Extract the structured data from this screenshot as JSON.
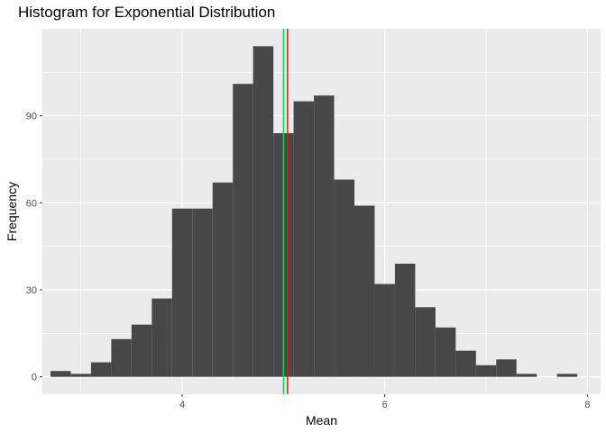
{
  "chart_data": {
    "type": "bar",
    "title": "Histogram for Exponential Distribution",
    "xlabel": "Mean",
    "ylabel": "Frequency",
    "xlim": [
      2.62,
      8.13
    ],
    "ylim": [
      -6,
      120
    ],
    "xticks": [
      4,
      6,
      8
    ],
    "yticks": [
      0,
      30,
      60,
      90
    ],
    "bin_width": 0.2,
    "bins": [
      {
        "start": 2.7,
        "count": 2
      },
      {
        "start": 2.9,
        "count": 1
      },
      {
        "start": 3.1,
        "count": 5
      },
      {
        "start": 3.3,
        "count": 13
      },
      {
        "start": 3.5,
        "count": 18
      },
      {
        "start": 3.7,
        "count": 27
      },
      {
        "start": 3.9,
        "count": 58
      },
      {
        "start": 4.1,
        "count": 58
      },
      {
        "start": 4.3,
        "count": 67
      },
      {
        "start": 4.5,
        "count": 101
      },
      {
        "start": 4.7,
        "count": 114
      },
      {
        "start": 4.9,
        "count": 84
      },
      {
        "start": 5.1,
        "count": 95
      },
      {
        "start": 5.3,
        "count": 97
      },
      {
        "start": 5.5,
        "count": 68
      },
      {
        "start": 5.7,
        "count": 59
      },
      {
        "start": 5.9,
        "count": 32
      },
      {
        "start": 6.1,
        "count": 39
      },
      {
        "start": 6.3,
        "count": 24
      },
      {
        "start": 6.5,
        "count": 17
      },
      {
        "start": 6.7,
        "count": 9
      },
      {
        "start": 6.9,
        "count": 4
      },
      {
        "start": 7.1,
        "count": 6
      },
      {
        "start": 7.3,
        "count": 1
      },
      {
        "start": 7.5,
        "count": 0
      },
      {
        "start": 7.7,
        "count": 1
      }
    ],
    "vlines": [
      {
        "x": 5.0,
        "color": "#00e05a"
      },
      {
        "x": 5.04,
        "color": "#e51c0e"
      }
    ],
    "grid": true,
    "colors": {
      "panel_background": "#ebebeb",
      "grid_major": "#ffffff",
      "bar_fill": "#474747"
    }
  }
}
